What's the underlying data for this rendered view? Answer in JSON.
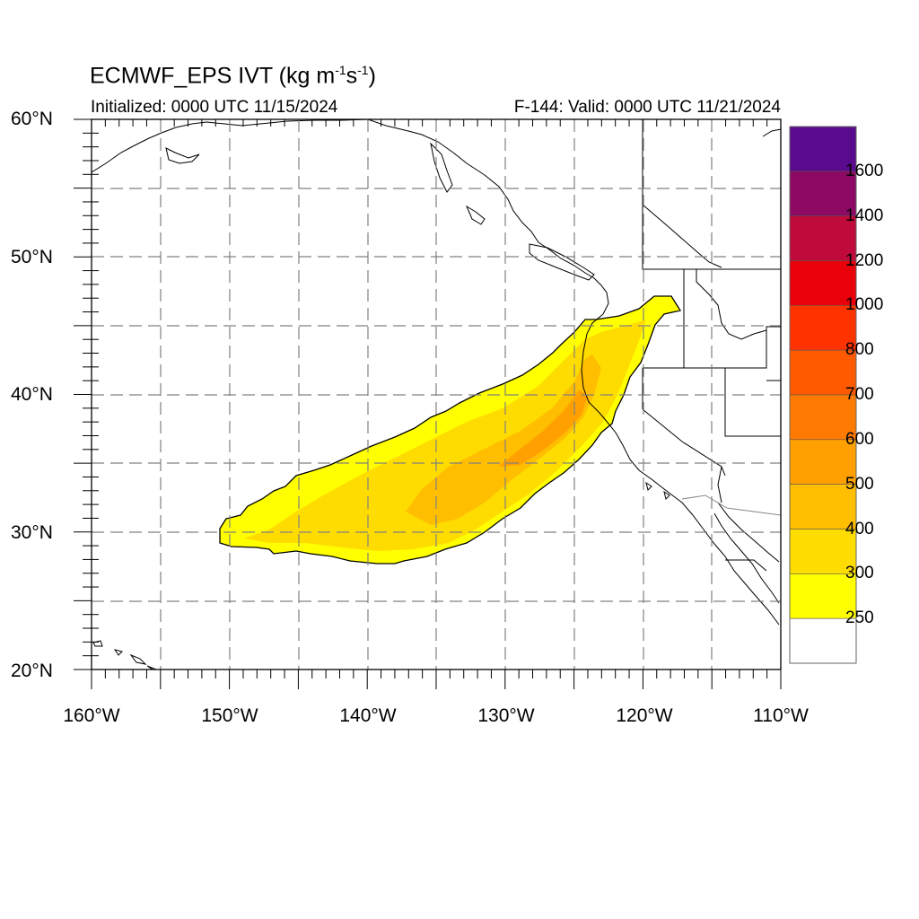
{
  "title": {
    "main": "ECMWF_EPS IVT (kg m",
    "sup1": "-1",
    "mid": "s",
    "sup2": "-1",
    "end": ")"
  },
  "subtitle_left": "Initialized: 0000 UTC 11/15/2024",
  "subtitle_right": "F-144: Valid: 0000 UTC 11/21/2024",
  "lat_labels": [
    "60°N",
    "50°N",
    "40°N",
    "30°N",
    "20°N"
  ],
  "lon_labels": [
    "160°W",
    "150°W",
    "140°W",
    "130°W",
    "120°W",
    "110°W"
  ],
  "colorbar": {
    "labels": [
      "1600",
      "1400",
      "1200",
      "1000",
      "800",
      "700",
      "600",
      "500",
      "400",
      "300",
      "250"
    ],
    "colors": [
      "#5a0a8c",
      "#8c0a64",
      "#c00a3c",
      "#e8000a",
      "#ff3300",
      "#ff5a00",
      "#ff7a00",
      "#ffa000",
      "#ffbe00",
      "#ffdc00",
      "#ffff00",
      "#ffffff"
    ]
  },
  "map": {
    "extent": {
      "lon": [
        -160,
        -110
      ],
      "lat": [
        20,
        60
      ]
    },
    "feature": "Atmospheric river plume extending from near 150°W 30°N northeastward to the Oregon/California coast"
  }
}
